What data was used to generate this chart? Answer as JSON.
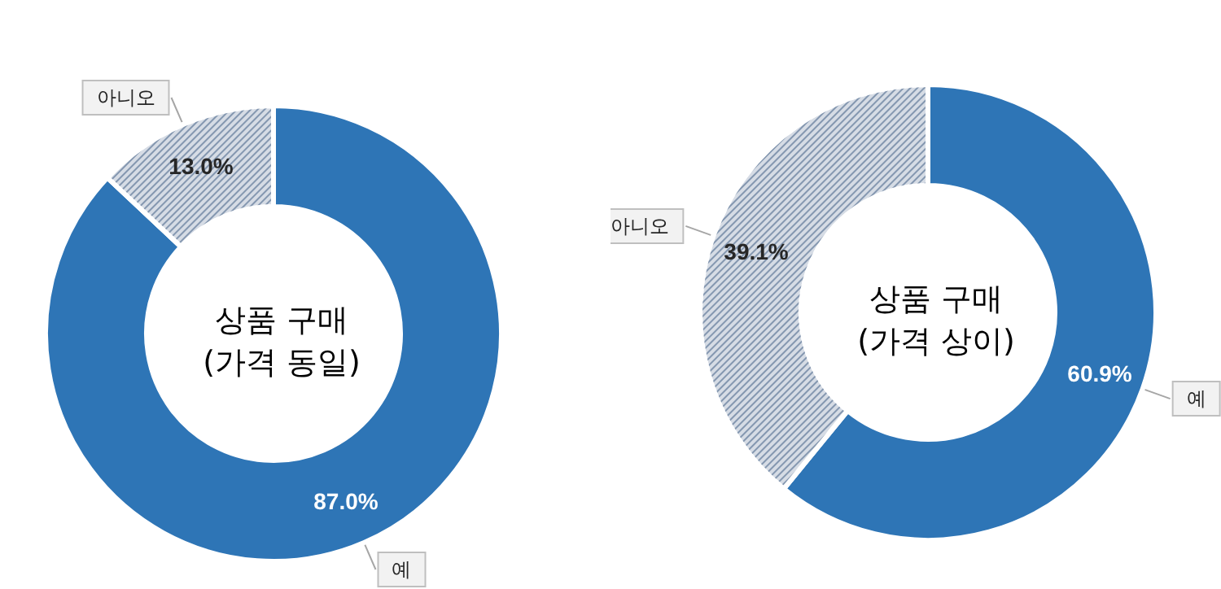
{
  "chart_data": [
    {
      "type": "donut",
      "title": "상품 구매\n(가격 동일)",
      "categories": [
        "예",
        "아니오"
      ],
      "values": [
        87.0,
        13.0
      ],
      "colors": [
        "#2e75b6",
        "#d6dce5"
      ],
      "value_labels": [
        "87.0%",
        "13.0%"
      ]
    },
    {
      "type": "donut",
      "title": "상품 구매\n(가격 상이)",
      "categories": [
        "예",
        "아니오"
      ],
      "values": [
        60.9,
        39.1
      ],
      "colors": [
        "#2e75b6",
        "#d6dce5"
      ],
      "value_labels": [
        "60.9%",
        "39.1%"
      ]
    }
  ]
}
